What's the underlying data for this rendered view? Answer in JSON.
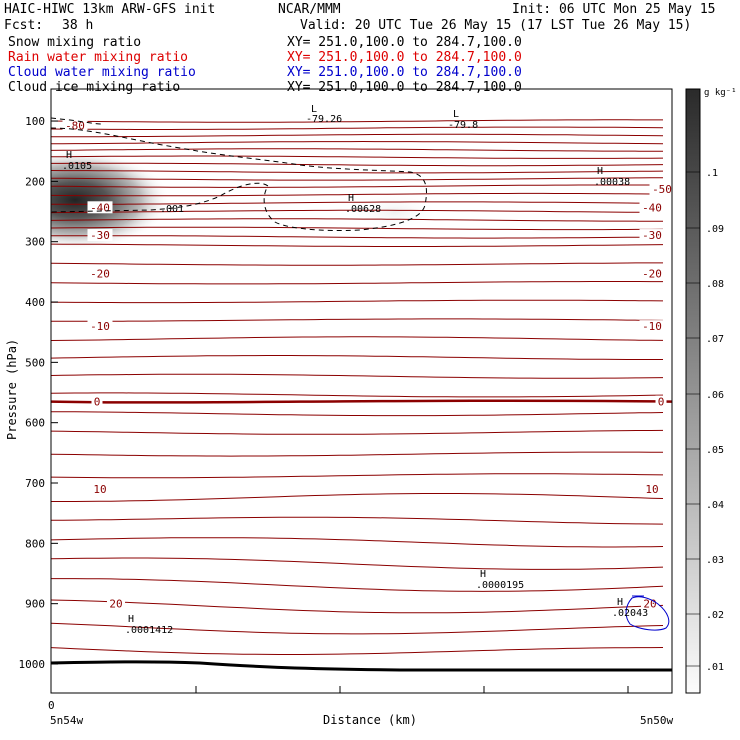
{
  "header": {
    "title_left": "HAIC-HIWC 13km ARW-GFS init",
    "org": "NCAR/MMM",
    "init": "Init: 06 UTC Mon 25 May 15",
    "fcst_label": "Fcst:",
    "fcst_value": "38 h",
    "valid": "Valid: 20 UTC Tue 26 May 15 (17 LST Tue 26 May 15)",
    "fields": [
      {
        "name": "Snow mixing ratio",
        "xy": "XY= 251.0,100.0 to 284.7,100.0",
        "color": "#000000"
      },
      {
        "name": "Rain water mixing ratio",
        "xy": "XY= 251.0,100.0 to 284.7,100.0",
        "color": "#dd0000"
      },
      {
        "name": "Cloud water mixing ratio",
        "xy": "XY= 251.0,100.0 to 284.7,100.0",
        "color": "#0000cc"
      },
      {
        "name": "Cloud ice mixing ratio",
        "xy": "XY= 251.0,100.0 to 284.7,100.0",
        "color": "#000000"
      }
    ]
  },
  "chart_data": {
    "type": "heatmap",
    "ylabel": "Pressure (hPa)",
    "xlabel": "Distance (km)",
    "y_ticks": [
      100,
      200,
      300,
      400,
      500,
      600,
      700,
      800,
      900,
      1000
    ],
    "ylim": [
      1050,
      50
    ],
    "x_tick_labels": {
      "left": "0",
      "left_bottom": "5n54w",
      "right_bottom": "5n50w"
    },
    "colorbar": {
      "unit": "g kg⁻¹",
      "ticks": [
        ".1",
        ".09",
        ".08",
        ".07",
        ".06",
        ".05",
        ".04",
        ".03",
        ".02",
        ".01"
      ]
    },
    "temperature_contours": [
      {
        "label": "-80",
        "p": 107
      },
      {
        "label": "-50",
        "p": 213
      },
      {
        "label": "-40",
        "p": 243
      },
      {
        "label": "-30",
        "p": 289
      },
      {
        "label": "-20",
        "p": 353
      },
      {
        "label": "-10",
        "p": 440
      },
      {
        "label": "0",
        "p": 565
      },
      {
        "label": "10",
        "p": 710
      },
      {
        "label": "20",
        "p": 900
      }
    ],
    "extrema": [
      {
        "type": "L",
        "value": "-79.26",
        "color": "#8b0000"
      },
      {
        "type": "L",
        "value": "-79.8",
        "color": "#8b0000"
      },
      {
        "type": "H",
        "value": ".0105",
        "color": "#000000"
      },
      {
        "type": "H",
        "value": ".00628",
        "color": "#000000"
      },
      {
        "type": "H",
        "value": ".00038",
        "color": "#000000"
      },
      {
        "type": "H",
        "value": ".0000195",
        "color": "#8b0000"
      },
      {
        "type": "H",
        "value": ".0001412",
        "color": "#8b0000"
      },
      {
        "type": "H",
        "value": ".02043",
        "color": "#0000cc"
      }
    ],
    "ice_contour_label": ".001",
    "colors": {
      "temperature": "#8b0000",
      "cloud_water": "#0000cc",
      "snow": "#000000"
    }
  }
}
